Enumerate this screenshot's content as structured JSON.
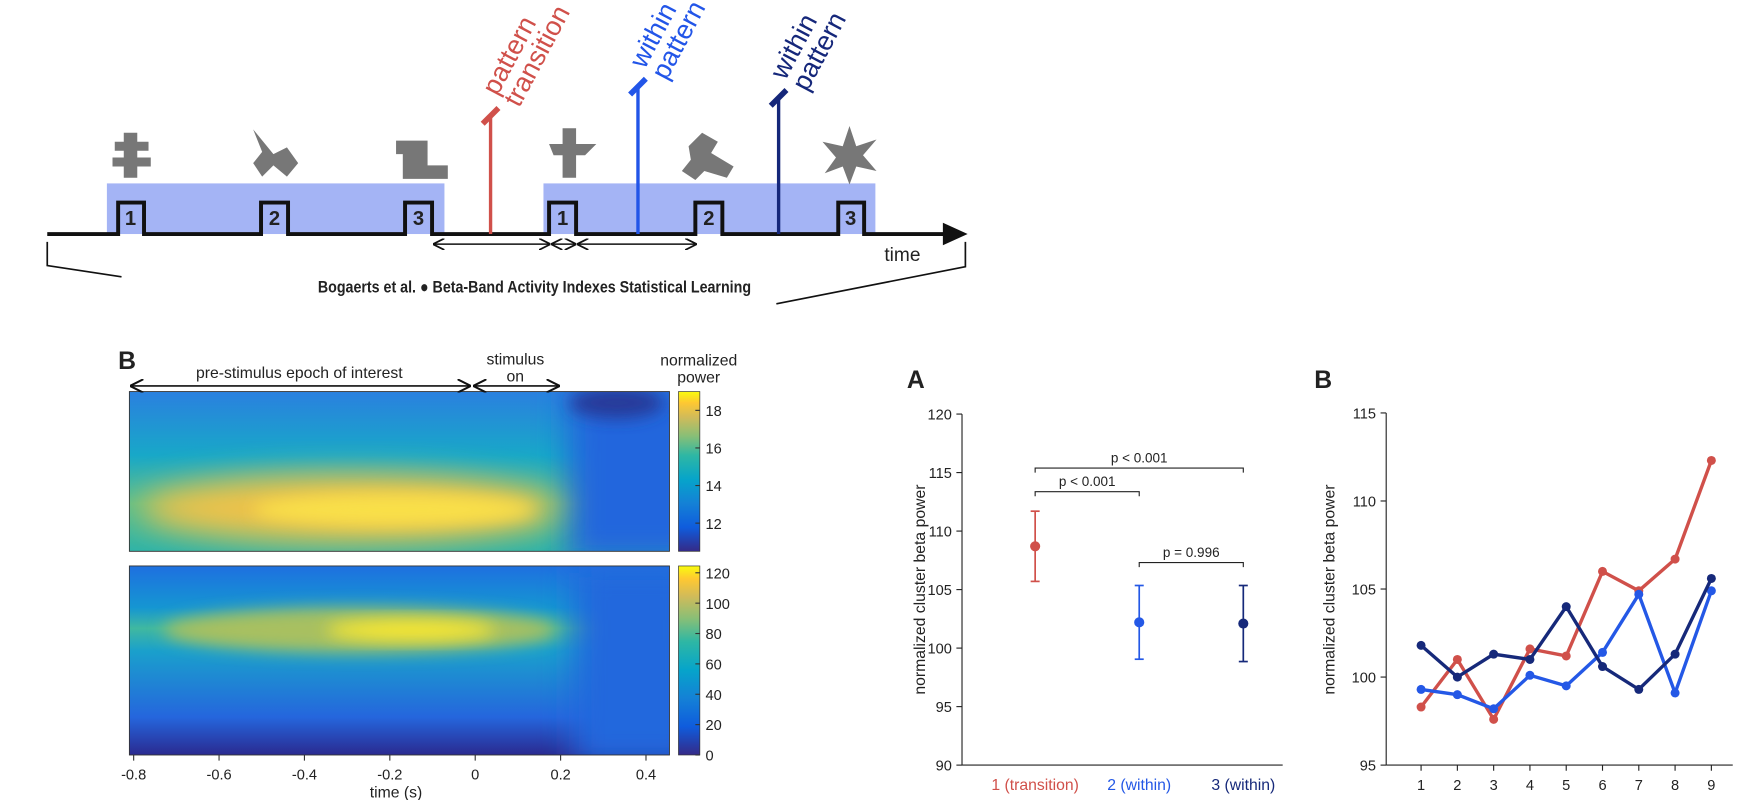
{
  "diagram": {
    "annotations": [
      [
        "pattern",
        "transition"
      ],
      [
        "within",
        "pattern"
      ],
      [
        "within",
        "pattern"
      ]
    ],
    "stimulus_numbers": [
      "1",
      "2",
      "3",
      "1",
      "2",
      "3"
    ],
    "axis_label": "time",
    "caption": "Bogaerts et al. ● Beta-Band Activity Indexes Statistical Learning"
  },
  "chart_data": [
    {
      "type": "heatmap",
      "panel_label": "B",
      "annotations": [
        [
          "pre-stimulus epoch of interest"
        ],
        [
          "stimulus",
          "on"
        ]
      ],
      "colorbar_label": [
        "normalized",
        "power"
      ],
      "xlabel": "time (s)",
      "xlim": [
        -0.81,
        0.455
      ],
      "xticks": [
        -0.8,
        -0.6,
        -0.4,
        -0.2,
        0,
        0.2,
        0.4
      ],
      "colorbars": [
        {
          "clim": [
            10.5,
            19
          ],
          "ticks": [
            12,
            14,
            16,
            18
          ]
        },
        {
          "clim": [
            0,
            124.5
          ],
          "ticks": [
            0,
            20,
            40,
            60,
            80,
            100,
            120
          ]
        }
      ]
    },
    {
      "type": "errorbar",
      "panel_label": "A",
      "categories": [
        "1 (transition)",
        "2 (within)",
        "3 (within)"
      ],
      "colors": [
        "#d0504a",
        "#2458e6",
        "#16297a"
      ],
      "values": [
        108.7,
        102.2,
        102.1
      ],
      "errors": [
        3.0,
        3.15,
        3.25
      ],
      "ylabel": "normalized cluster beta power",
      "ylim": [
        90,
        120
      ],
      "yticks": [
        90,
        95,
        100,
        105,
        110,
        115,
        120
      ],
      "annotations": [
        {
          "text": "p < 0.001",
          "between": [
            0,
            2
          ]
        },
        {
          "text": "p < 0.001",
          "between": [
            0,
            1
          ]
        },
        {
          "text": "p = 0.996",
          "between": [
            1,
            2
          ]
        }
      ]
    },
    {
      "type": "line",
      "panel_label": "B",
      "x": [
        1,
        2,
        3,
        4,
        5,
        6,
        7,
        8,
        9
      ],
      "xlim": [
        0,
        9.6
      ],
      "xticks": [
        1,
        2,
        3,
        4,
        5,
        6,
        7,
        8,
        9
      ],
      "ylabel": "normalized cluster beta power",
      "ylim": [
        95,
        115
      ],
      "yticks": [
        95,
        100,
        105,
        110,
        115
      ],
      "series": [
        {
          "color": "#d0504a",
          "values": [
            98.3,
            101.0,
            97.6,
            101.6,
            101.2,
            106.0,
            104.9,
            106.7,
            112.3
          ]
        },
        {
          "color": "#2458e6",
          "values": [
            99.3,
            99.0,
            98.2,
            100.1,
            99.5,
            101.4,
            104.7,
            99.1,
            104.9
          ]
        },
        {
          "color": "#16297a",
          "values": [
            101.8,
            100.0,
            101.3,
            101.0,
            104.0,
            100.6,
            99.3,
            101.3,
            105.6
          ]
        }
      ]
    }
  ]
}
